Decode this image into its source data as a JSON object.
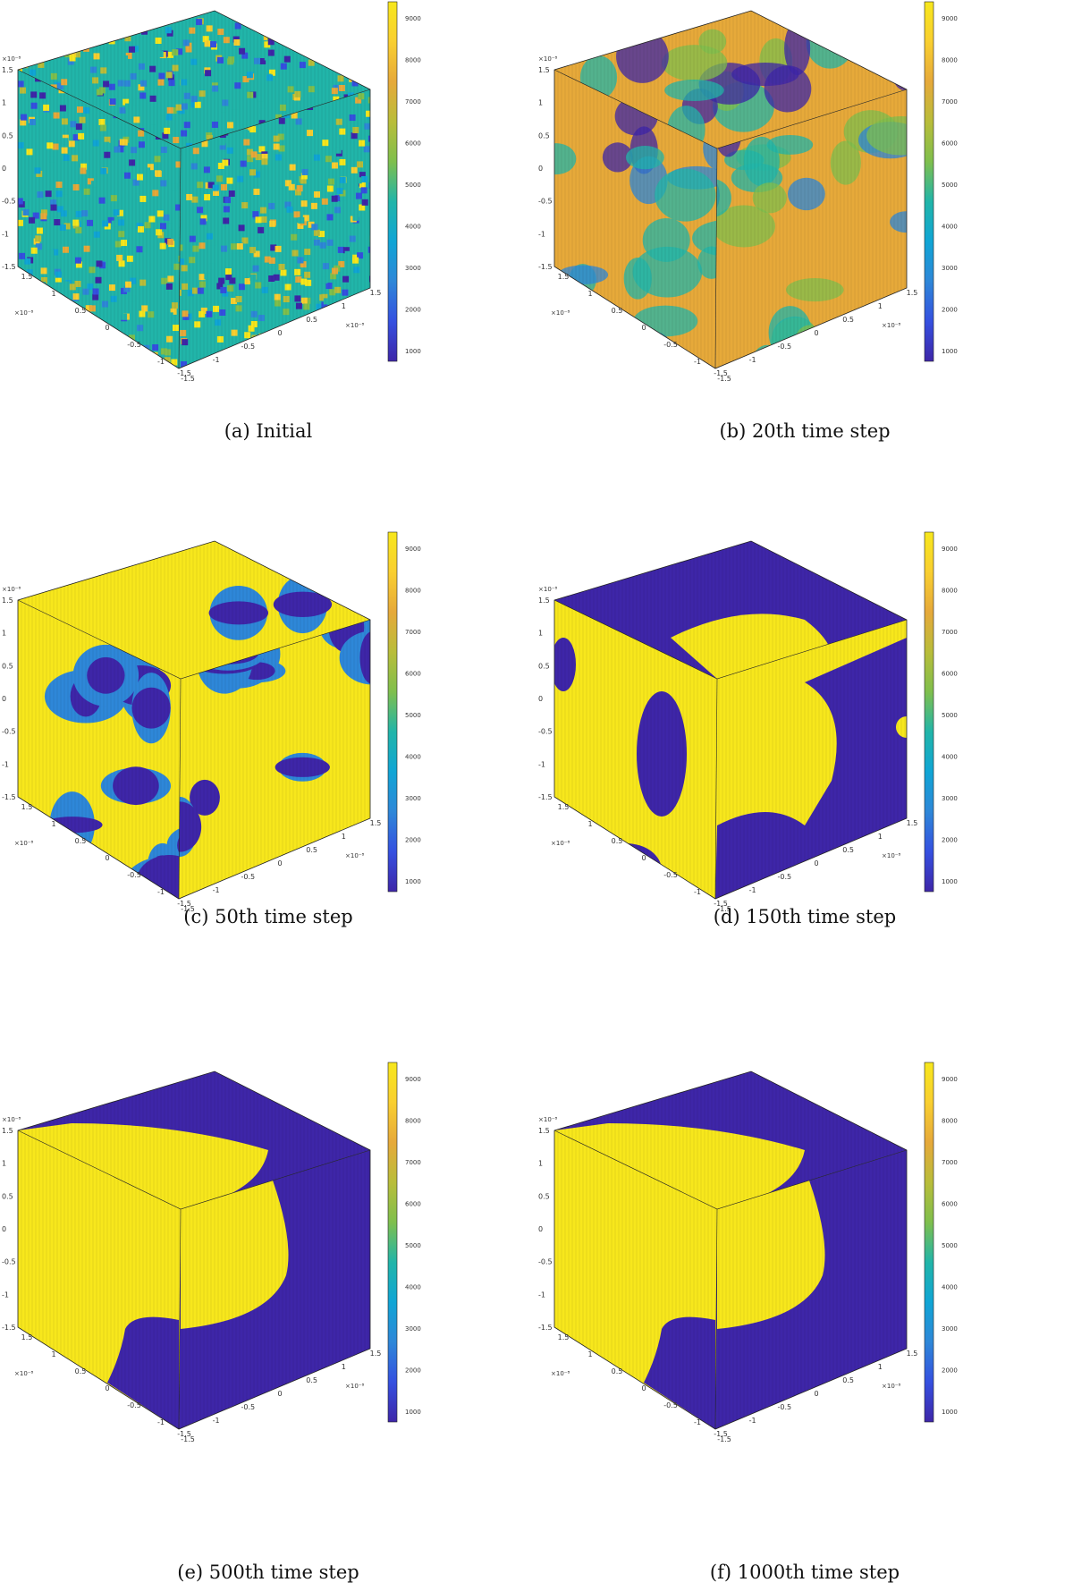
{
  "figure": {
    "panels": [
      {
        "id": "a",
        "caption": "(a) Initial",
        "pattern": "random"
      },
      {
        "id": "b",
        "caption": "(b) 20th time step",
        "pattern": "blobs"
      },
      {
        "id": "c",
        "caption": "(c) 50th time step",
        "pattern": "domains"
      },
      {
        "id": "d",
        "caption": "(d) 150th time step",
        "pattern": "coarse"
      },
      {
        "id": "e",
        "caption": "(e) 500th time step",
        "pattern": "separated"
      },
      {
        "id": "f",
        "caption": "(f) 1000th time step",
        "pattern": "separated2"
      }
    ],
    "axis_ticks": [
      "1.5",
      "1",
      "0.5",
      "0",
      "-0.5",
      "-1",
      "-1.5"
    ],
    "axis_exponent": "×10⁻⁸",
    "colorbar_ticks": [
      "9000",
      "8000",
      "7000",
      "6000",
      "5000",
      "4000",
      "3000",
      "2000",
      "1000"
    ],
    "colors": {
      "yellow": "#f7e71c",
      "dark_blue": "#3e26a8",
      "teal": "#21b5a9",
      "orange": "#e6a93a",
      "green": "#7fbf4d",
      "blue": "#2e87d8"
    }
  }
}
